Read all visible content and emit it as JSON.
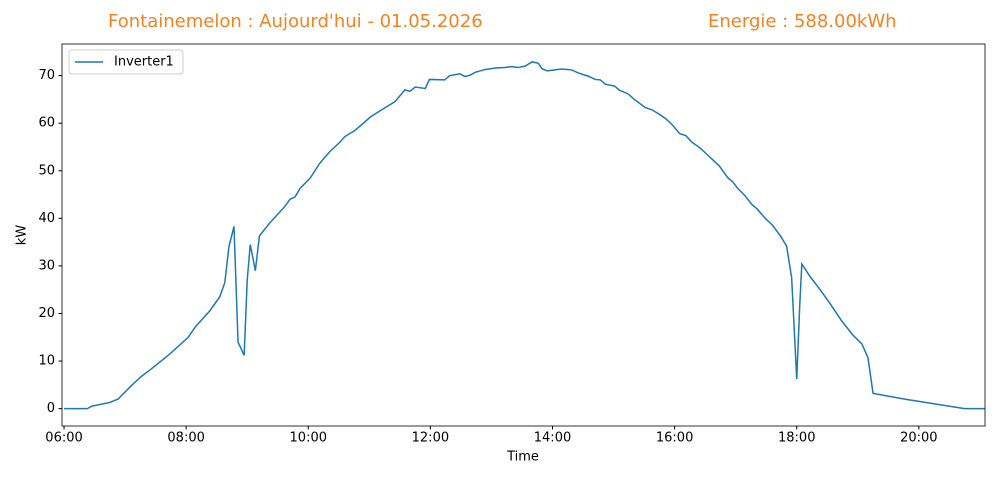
{
  "chart_data": {
    "type": "line",
    "title": "Fontainemelon : Aujourd'hui - 01.05.2026",
    "subtitle": "Energie : 588.00kWh",
    "x_label": "Time",
    "y_label": "kW",
    "legend": "upper left",
    "xlim": [
      "05:58",
      "21:05"
    ],
    "xticks": [
      "06:00",
      "08:00",
      "10:00",
      "12:00",
      "14:00",
      "16:00",
      "18:00",
      "20:00"
    ],
    "ylim": [
      -3.65,
      76.65
    ],
    "yticks": [
      0,
      10,
      20,
      30,
      40,
      50,
      60,
      70
    ],
    "x": [
      "06:00",
      "06:23",
      "06:27",
      "06:45",
      "06:53",
      "07:00",
      "07:07",
      "07:15",
      "07:26",
      "07:44",
      "08:02",
      "08:09",
      "08:23",
      "08:33",
      "08:38",
      "08:42",
      "08:47",
      "08:51",
      "08:57",
      "09:00",
      "09:03",
      "09:08",
      "09:12",
      "09:22",
      "09:37",
      "09:42",
      "09:47",
      "09:52",
      "10:02",
      "10:11",
      "10:21",
      "10:31",
      "10:36",
      "10:46",
      "11:01",
      "11:15",
      "11:25",
      "11:35",
      "11:40",
      "11:45",
      "11:55",
      "11:59",
      "12:14",
      "12:19",
      "12:29",
      "12:34",
      "12:39",
      "12:44",
      "12:54",
      "13:04",
      "13:13",
      "13:20",
      "13:26",
      "13:33",
      "13:40",
      "13:46",
      "13:50",
      "13:55",
      "14:02",
      "14:09",
      "14:19",
      "14:25",
      "14:35",
      "14:42",
      "14:47",
      "14:52",
      "15:01",
      "15:06",
      "15:14",
      "15:21",
      "15:31",
      "15:38",
      "15:44",
      "15:51",
      "15:58",
      "16:05",
      "16:11",
      "16:17",
      "16:25",
      "16:34",
      "16:44",
      "16:52",
      "16:57",
      "17:02",
      "17:09",
      "17:16",
      "17:21",
      "17:29",
      "17:36",
      "17:44",
      "17:50",
      "17:55",
      "18:00",
      "18:03",
      "18:05",
      "18:13",
      "18:23",
      "18:33",
      "18:44",
      "18:55",
      "19:04",
      "19:10",
      "19:15",
      "19:46",
      "20:45",
      "21:05"
    ],
    "series": [
      {
        "name": "Inverter1",
        "color": "#1f77b4",
        "values": [
          0,
          0,
          0.5,
          1.3,
          2,
          3.5,
          5,
          6.6,
          8.4,
          11.5,
          15,
          17.2,
          20.5,
          23.5,
          26.5,
          34,
          38.3,
          14,
          11.2,
          27,
          34.5,
          29,
          36.3,
          39,
          42.5,
          44,
          44.5,
          46.3,
          48.5,
          51.5,
          54,
          56,
          57.2,
          58.5,
          61.3,
          63.2,
          64.5,
          67,
          66.7,
          67.6,
          67.3,
          69.2,
          69.1,
          70,
          70.4,
          69.8,
          70.1,
          70.7,
          71.3,
          71.6,
          71.7,
          71.9,
          71.7,
          72,
          72.9,
          72.6,
          71.4,
          71,
          71.2,
          71.4,
          71.2,
          70.6,
          69.9,
          69.2,
          69.1,
          68.2,
          67.8,
          66.9,
          66.2,
          64.9,
          63.3,
          62.8,
          62,
          61,
          59.6,
          57.8,
          57.4,
          56,
          54.8,
          53,
          51,
          48.6,
          47.7,
          46.3,
          44.8,
          42.9,
          42,
          40,
          38.6,
          36.3,
          34.2,
          27.5,
          6.2,
          22,
          30.4,
          27.8,
          25,
          22,
          18.5,
          15.5,
          13.6,
          10.7,
          3.2,
          2,
          0,
          0
        ]
      }
    ]
  }
}
